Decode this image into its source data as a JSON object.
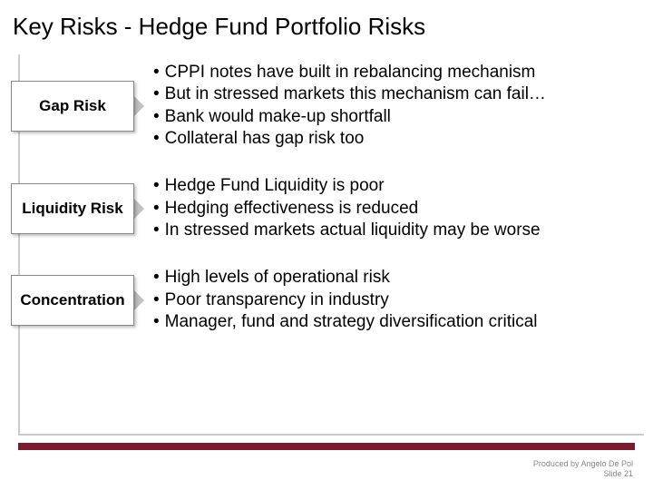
{
  "title": "Key Risks - Hedge Fund Portfolio Risks",
  "accent_bar_color": "#7a1b2e",
  "rows": [
    {
      "label": "Gap Risk",
      "bullet_style": "disc",
      "items": [
        "CPPI notes have built in rebalancing mechanism",
        "But in stressed markets this mechanism can fail…",
        "Bank would make-up shortfall",
        "Collateral has gap risk too"
      ]
    },
    {
      "label": "Liquidity Risk",
      "bullet_style": "dot",
      "items": [
        "Hedge Fund Liquidity is poor",
        "Hedging effectiveness is reduced",
        "In stressed markets actual liquidity may be worse"
      ]
    },
    {
      "label": "Concentration",
      "bullet_style": "dot",
      "items": [
        "High levels of operational risk",
        "Poor transparency in industry",
        "Manager, fund and strategy diversification critical"
      ]
    }
  ],
  "footer": {
    "line1": "Produced by Angelo De Pol",
    "line2": "Slide 21"
  }
}
